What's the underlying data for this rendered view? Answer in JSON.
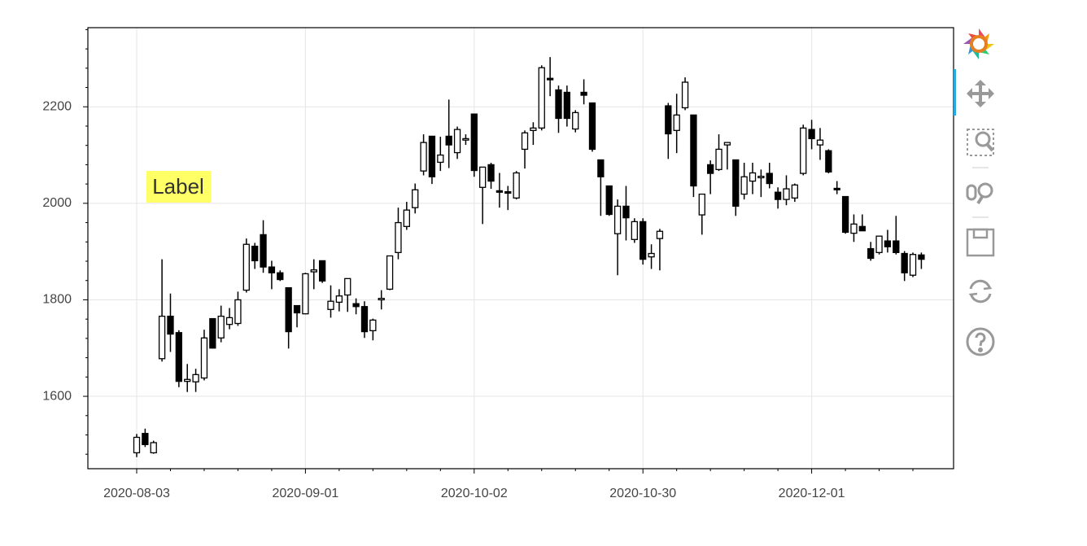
{
  "chart_data": {
    "type": "candlestick",
    "annotation": "Label",
    "categories": [
      "2020-08-03",
      null,
      null,
      null,
      null,
      null,
      null,
      null,
      null,
      null,
      null,
      null,
      null,
      null,
      null,
      null,
      null,
      null,
      null,
      null,
      "2020-09-01",
      null,
      null,
      null,
      null,
      null,
      null,
      null,
      null,
      null,
      null,
      null,
      null,
      null,
      null,
      null,
      null,
      null,
      null,
      null,
      "2020-10-02",
      null,
      null,
      null,
      null,
      null,
      null,
      null,
      null,
      null,
      null,
      null,
      null,
      null,
      null,
      null,
      null,
      null,
      null,
      null,
      "2020-10-30",
      null,
      null,
      null,
      null,
      null,
      null,
      null,
      null,
      null,
      null,
      null,
      null,
      null,
      null,
      null,
      null,
      null,
      null,
      null,
      "2020-12-01",
      null,
      null,
      null,
      null,
      null,
      null,
      null,
      null,
      null,
      null,
      null,
      null,
      null
    ],
    "open": [
      1483,
      1523,
      1483,
      1678,
      1766,
      1732,
      1631,
      1630,
      1638,
      1761,
      1721,
      1749,
      1751,
      1820,
      1911,
      1935,
      1868,
      1856,
      1825,
      1788,
      1771,
      1858,
      1881,
      1780,
      1795,
      1810,
      1792,
      1786,
      1736,
      1800,
      1822,
      1898,
      1952,
      1991,
      2067,
      2139,
      2085,
      2139,
      2105,
      2131,
      2185,
      2033,
      2080,
      2026,
      2024,
      2011,
      2112,
      2151,
      2156,
      2259,
      2235,
      2230,
      2154,
      2230,
      2208,
      2090,
      2036,
      1937,
      1994,
      1925,
      1962,
      1889,
      1927,
      2202,
      2151,
      2198,
      2183,
      1976,
      2080,
      2070,
      2121,
      2090,
      2019,
      2046,
      2053,
      2062,
      2023,
      2008,
      2011,
      2062,
      2153,
      2121,
      2109,
      2031,
      2014,
      1938,
      1952,
      1906,
      1898,
      1922,
      1922,
      1896,
      1851,
      1893
    ],
    "high": [
      1522,
      1533,
      1508,
      1884,
      1813,
      1737,
      1667,
      1657,
      1738,
      1761,
      1788,
      1783,
      1817,
      1927,
      1918,
      1965,
      1881,
      1861,
      1825,
      1788,
      1856,
      1884,
      1881,
      1830,
      1822,
      1844,
      1803,
      1797,
      1761,
      1820,
      1891,
      1991,
      2003,
      2041,
      2143,
      2139,
      2138,
      2215,
      2159,
      2143,
      2185,
      2075,
      2084,
      2063,
      2036,
      2067,
      2151,
      2168,
      2286,
      2303,
      2244,
      2244,
      2193,
      2257,
      2208,
      2090,
      2036,
      2008,
      2036,
      1969,
      1969,
      1915,
      1947,
      2208,
      2227,
      2261,
      2183,
      2019,
      2089,
      2143,
      2126,
      2090,
      2084,
      2084,
      2070,
      2084,
      2033,
      2058,
      2041,
      2163,
      2173,
      2156,
      2112,
      2046,
      2014,
      1977,
      1977,
      1920,
      1932,
      1945,
      1974,
      1901,
      1898,
      1898
    ],
    "low": [
      1474,
      1495,
      1481,
      1672,
      1692,
      1619,
      1609,
      1609,
      1633,
      1699,
      1712,
      1739,
      1746,
      1815,
      1864,
      1856,
      1822,
      1839,
      1699,
      1743,
      1770,
      1822,
      1835,
      1763,
      1776,
      1775,
      1770,
      1721,
      1716,
      1780,
      1820,
      1884,
      1945,
      1979,
      2058,
      2040,
      2067,
      2073,
      2092,
      2121,
      2055,
      1957,
      2030,
      1991,
      1986,
      2008,
      2072,
      2121,
      2151,
      2222,
      2146,
      2159,
      2147,
      2205,
      2107,
      1974,
      1974,
      1851,
      1923,
      1918,
      1873,
      1864,
      1861,
      2092,
      2104,
      2193,
      2013,
      1935,
      2019,
      2067,
      2070,
      1974,
      2008,
      2019,
      2013,
      2031,
      1989,
      1996,
      2003,
      2058,
      2112,
      2090,
      2062,
      2019,
      1937,
      1920,
      1943,
      1881,
      1894,
      1898,
      1894,
      1839,
      1847,
      1864
    ],
    "close": [
      1515,
      1500,
      1504,
      1766,
      1729,
      1631,
      1635,
      1645,
      1721,
      1700,
      1766,
      1763,
      1800,
      1915,
      1881,
      1868,
      1856,
      1842,
      1734,
      1773,
      1854,
      1862,
      1839,
      1797,
      1808,
      1844,
      1786,
      1734,
      1758,
      1803,
      1891,
      1960,
      1986,
      2028,
      2126,
      2055,
      2100,
      2121,
      2153,
      2134,
      2068,
      2075,
      2046,
      2023,
      2021,
      2063,
      2146,
      2156,
      2281,
      2256,
      2176,
      2176,
      2188,
      2224,
      2112,
      2055,
      1977,
      1994,
      1970,
      1962,
      1884,
      1896,
      1942,
      2144,
      2183,
      2251,
      2036,
      2019,
      2062,
      2112,
      2126,
      1994,
      2055,
      2063,
      2056,
      2041,
      2008,
      2030,
      2038,
      2156,
      2134,
      2131,
      2065,
      2028,
      1940,
      1957,
      1943,
      1886,
      1932,
      1910,
      1898,
      1856,
      1894,
      1884
    ],
    "increasing_color": "#ffffff",
    "decreasing_color": "#000000",
    "ylim": [
      1450,
      2364
    ],
    "yticks": [
      1600,
      1800,
      2000,
      2200
    ],
    "grid": true
  }
}
